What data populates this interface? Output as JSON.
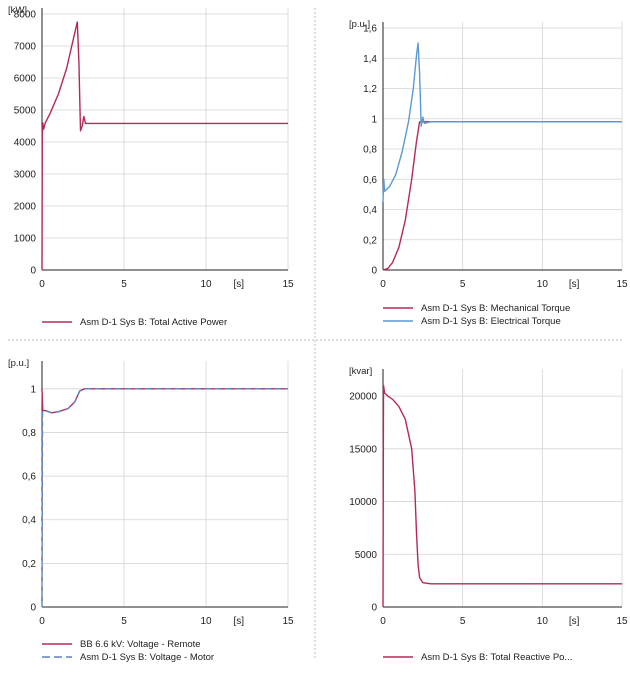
{
  "chart_data": [
    {
      "type": "line",
      "units_x": "[s]",
      "units_y": "[kW]",
      "xlim": [
        0,
        15
      ],
      "ylim": [
        0,
        8000
      ],
      "x_ticks": [
        0,
        5,
        10,
        15
      ],
      "y_ticks": [
        0,
        1000,
        2000,
        3000,
        4000,
        5000,
        6000,
        7000,
        8000
      ],
      "y_tick_labels": [
        "0",
        "1000",
        "2000",
        "3000",
        "4000",
        "5000",
        "6000",
        "7000",
        "8000"
      ],
      "grid": true,
      "legend_position": "bottom",
      "series": [
        {
          "name": "Asm D-1 Sys B: Total Active Power",
          "color": "#b5285a",
          "dash": "solid",
          "points": [
            [
              0,
              0
            ],
            [
              0.02,
              4200
            ],
            [
              0.05,
              4600
            ],
            [
              0.1,
              4400
            ],
            [
              0.2,
              4600
            ],
            [
              0.5,
              4900
            ],
            [
              1.0,
              5500
            ],
            [
              1.5,
              6300
            ],
            [
              1.9,
              7200
            ],
            [
              2.15,
              7750
            ],
            [
              2.25,
              6500
            ],
            [
              2.35,
              4350
            ],
            [
              2.45,
              4500
            ],
            [
              2.55,
              4800
            ],
            [
              2.65,
              4580
            ],
            [
              3.0,
              4580
            ],
            [
              15,
              4580
            ]
          ]
        }
      ]
    },
    {
      "type": "line",
      "units_x": "[s]",
      "units_y": "[p.u.]",
      "xlim": [
        0,
        15
      ],
      "ylim": [
        0,
        1.6
      ],
      "x_ticks": [
        0,
        5,
        10,
        15
      ],
      "y_ticks": [
        0,
        0.2,
        0.4,
        0.6,
        0.8,
        1,
        1.2,
        1.4,
        1.6
      ],
      "y_tick_labels": [
        "0",
        "0,2",
        "0,4",
        "0,6",
        "0,8",
        "1",
        "1,2",
        "1,4",
        "1,6"
      ],
      "grid": true,
      "legend_position": "bottom",
      "series": [
        {
          "name": "Asm D-1 Sys B: Mechanical Torque",
          "color": "#b5285a",
          "dash": "solid",
          "points": [
            [
              0,
              0
            ],
            [
              0.3,
              0.01
            ],
            [
              0.6,
              0.05
            ],
            [
              1.0,
              0.15
            ],
            [
              1.4,
              0.33
            ],
            [
              1.8,
              0.6
            ],
            [
              2.1,
              0.85
            ],
            [
              2.3,
              0.98
            ],
            [
              15,
              0.98
            ]
          ]
        },
        {
          "name": "Asm D-1 Sys B: Electrical Torque",
          "color": "#5a9ad2",
          "dash": "solid",
          "points": [
            [
              0,
              0.45
            ],
            [
              0.05,
              0.6
            ],
            [
              0.1,
              0.52
            ],
            [
              0.4,
              0.55
            ],
            [
              0.8,
              0.63
            ],
            [
              1.2,
              0.78
            ],
            [
              1.6,
              0.98
            ],
            [
              1.9,
              1.2
            ],
            [
              2.1,
              1.42
            ],
            [
              2.2,
              1.5
            ],
            [
              2.3,
              1.3
            ],
            [
              2.4,
              0.95
            ],
            [
              2.5,
              1.01
            ],
            [
              2.6,
              0.97
            ],
            [
              3.0,
              0.98
            ],
            [
              15,
              0.98
            ]
          ]
        }
      ]
    },
    {
      "type": "line",
      "units_x": "[s]",
      "units_y": "[p.u.]",
      "xlim": [
        0,
        15
      ],
      "ylim": [
        0,
        1.1
      ],
      "x_ticks": [
        0,
        5,
        10,
        15
      ],
      "y_ticks": [
        0,
        0.2,
        0.4,
        0.6,
        0.8,
        1
      ],
      "y_tick_labels": [
        "0",
        "0,2",
        "0,4",
        "0,6",
        "0,8",
        "1"
      ],
      "grid": true,
      "legend_position": "bottom",
      "series": [
        {
          "name": "BB 6.6 kV: Voltage - Remote",
          "color": "#b5285a",
          "dash": "solid",
          "points": [
            [
              0,
              1.0
            ],
            [
              0.05,
              0.9
            ],
            [
              0.2,
              0.9
            ],
            [
              0.6,
              0.89
            ],
            [
              1.0,
              0.895
            ],
            [
              1.6,
              0.91
            ],
            [
              2.0,
              0.94
            ],
            [
              2.3,
              0.99
            ],
            [
              2.6,
              1.0
            ],
            [
              15,
              1.0
            ]
          ]
        },
        {
          "name": "Asm D-1 Sys B: Voltage - Motor",
          "color": "#5a84c4",
          "dash": "dashed",
          "points": [
            [
              0,
              0
            ],
            [
              0.03,
              0.9
            ],
            [
              0.2,
              0.9
            ],
            [
              0.6,
              0.89
            ],
            [
              1.0,
              0.895
            ],
            [
              1.6,
              0.91
            ],
            [
              2.0,
              0.94
            ],
            [
              2.3,
              0.99
            ],
            [
              2.6,
              1.0
            ],
            [
              15,
              1.0
            ]
          ]
        }
      ]
    },
    {
      "type": "line",
      "units_x": "[s]",
      "units_y": "[kvar]",
      "xlim": [
        0,
        15
      ],
      "ylim": [
        0,
        22000
      ],
      "x_ticks": [
        0,
        5,
        10,
        15
      ],
      "y_ticks": [
        0,
        5000,
        10000,
        15000,
        20000
      ],
      "y_tick_labels": [
        "0",
        "5000",
        "10000",
        "15000",
        "20000"
      ],
      "grid": true,
      "legend_position": "bottom",
      "series": [
        {
          "name": "Asm D-1 Sys B: Total Reactive Po...",
          "color": "#b5285a",
          "dash": "solid",
          "points": [
            [
              0,
              0
            ],
            [
              0.03,
              21000
            ],
            [
              0.1,
              20300
            ],
            [
              0.3,
              20000
            ],
            [
              0.6,
              19700
            ],
            [
              1.0,
              19000
            ],
            [
              1.4,
              17800
            ],
            [
              1.8,
              15000
            ],
            [
              2.0,
              11000
            ],
            [
              2.1,
              7000
            ],
            [
              2.2,
              4000
            ],
            [
              2.3,
              2800
            ],
            [
              2.5,
              2300
            ],
            [
              3.0,
              2200
            ],
            [
              15,
              2200
            ]
          ]
        }
      ]
    }
  ]
}
